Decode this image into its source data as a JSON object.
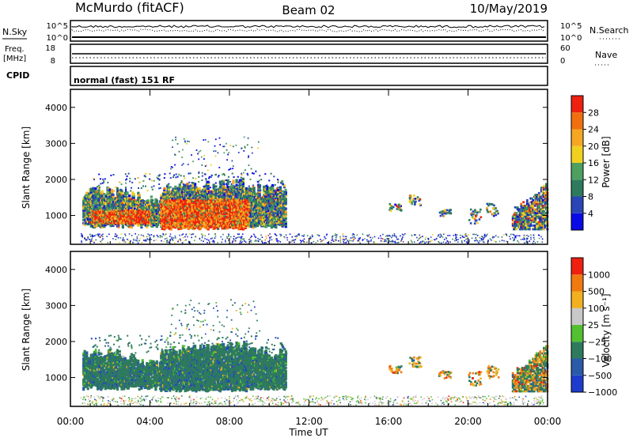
{
  "header": {
    "station": "McMurdo (fitACF)",
    "beam": "Beam 02",
    "date": "10/May/2019"
  },
  "top_panels": {
    "nsky_label": "N.Sky",
    "nsky_ticks": [
      "10^5",
      "10^0"
    ],
    "nsearch_label": "N.Search",
    "nsearch_ticks": [
      "10^5",
      "10^0"
    ],
    "freq_label": "Freq.",
    "freq_unit": "[MHz]",
    "freq_ticks": [
      "18",
      "8"
    ],
    "nave_label": "Nave",
    "nave_ticks": [
      "60",
      "0"
    ],
    "cpid_label": "CPID",
    "cpid_text": "normal (fast) 151 RF"
  },
  "chart_data": [
    {
      "type": "heatmap",
      "name": "power",
      "ylabel": "Slant Range [km]",
      "ylim": [
        200,
        4500
      ],
      "yticks": [
        "1000",
        "2000",
        "3000",
        "4000"
      ],
      "xticks": [
        "00:00",
        "04:00",
        "08:00",
        "12:00",
        "16:00",
        "20:00",
        "00:00"
      ],
      "colorbar": {
        "label": "Power [dB]",
        "ticks": [
          "4",
          "8",
          "12",
          "16",
          "20",
          "24",
          "28"
        ],
        "colors": [
          "#0a0ae6",
          "#2a46b4",
          "#2e7a5e",
          "#4da060",
          "#f0d020",
          "#f5a623",
          "#f07010",
          "#ee2010"
        ]
      }
    },
    {
      "type": "heatmap",
      "name": "velocity",
      "ylabel": "Slant Range [km]",
      "ylim": [
        200,
        4500
      ],
      "yticks": [
        "1000",
        "2000",
        "3000",
        "4000"
      ],
      "xticks": [
        "00:00",
        "04:00",
        "08:00",
        "12:00",
        "16:00",
        "20:00",
        "00:00"
      ],
      "xlabel": "Time UT",
      "colorbar": {
        "label": "Velocity [m s⁻¹]",
        "ticks": [
          "1000",
          "500",
          "100",
          "25",
          "−25",
          "−100",
          "−500",
          "−1000"
        ],
        "colors": [
          "#1e3ccc",
          "#2a5aa8",
          "#2e7a5e",
          "#52c030",
          "#c8c8c8",
          "#f0b020",
          "#f07a10",
          "#ee2010"
        ]
      }
    }
  ]
}
